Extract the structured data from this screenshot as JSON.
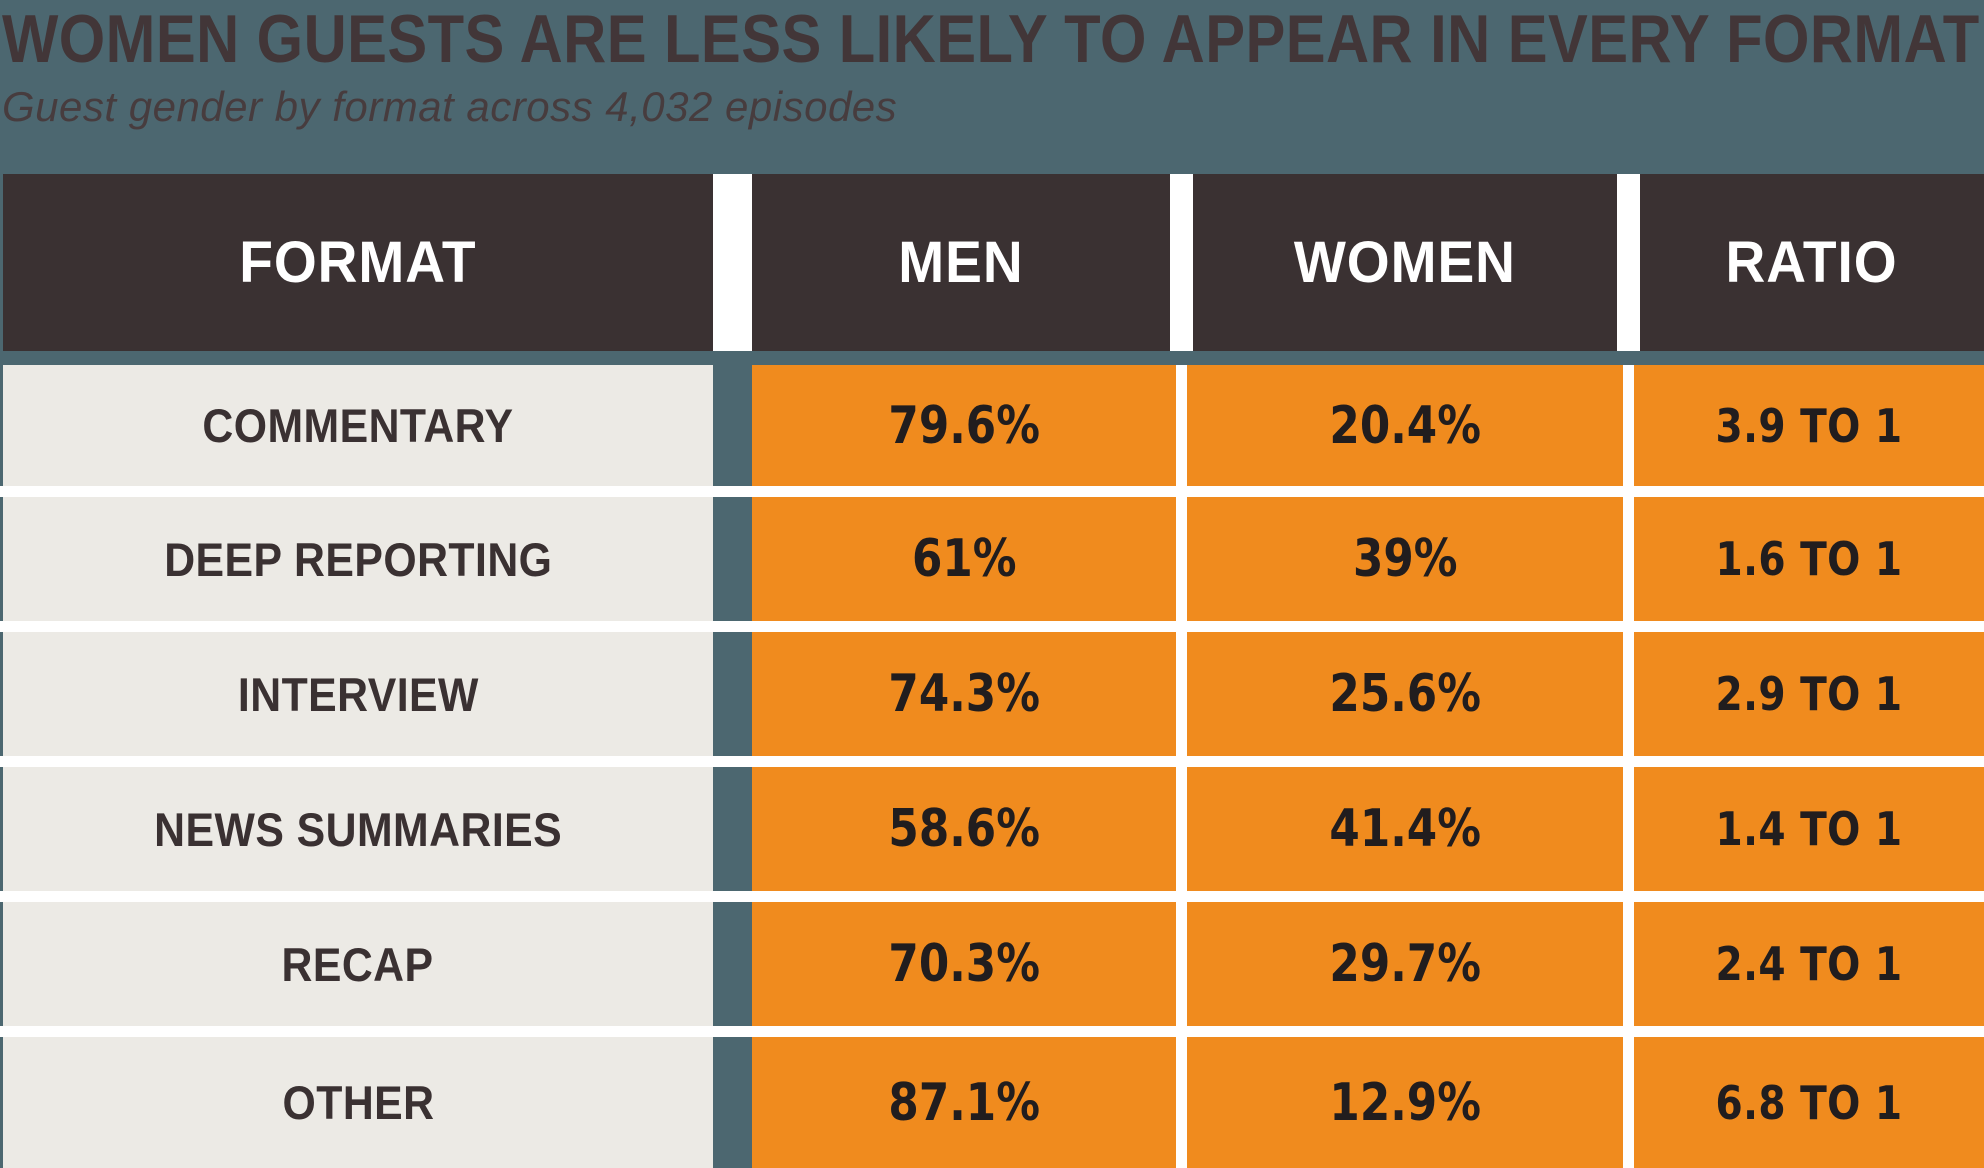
{
  "title": "WOMEN GUESTS ARE LESS LIKELY TO APPEAR IN EVERY FORMAT",
  "subtitle": "Guest gender by format across 4,032 episodes",
  "colors": {
    "background_teal": "#4c6770",
    "header_dark": "#3a3132",
    "cell_orange": "#f08b1e",
    "format_cell_gray": "#eceae5",
    "separator_white": "#ffffff",
    "title_dark": "#423638",
    "value_text": "#211d1e"
  },
  "chart_data": {
    "type": "table",
    "title": "WOMEN GUESTS ARE LESS LIKELY TO APPEAR IN EVERY FORMAT",
    "subtitle": "Guest gender by format across 4,032 episodes",
    "total_episodes": 4032,
    "columns": [
      "FORMAT",
      "MEN",
      "WOMEN",
      "RATIO"
    ],
    "rows": [
      {
        "format": "COMMENTARY",
        "men": "79.6%",
        "women": "20.4%",
        "ratio": "3.9 TO 1",
        "men_pct": 79.6,
        "women_pct": 20.4,
        "ratio_value": 3.9
      },
      {
        "format": "DEEP REPORTING",
        "men": "61%",
        "women": "39%",
        "ratio": "1.6 TO 1",
        "men_pct": 61,
        "women_pct": 39,
        "ratio_value": 1.6
      },
      {
        "format": "INTERVIEW",
        "men": "74.3%",
        "women": "25.6%",
        "ratio": "2.9 TO 1",
        "men_pct": 74.3,
        "women_pct": 25.6,
        "ratio_value": 2.9
      },
      {
        "format": "NEWS SUMMARIES",
        "men": "58.6%",
        "women": "41.4%",
        "ratio": "1.4 TO 1",
        "men_pct": 58.6,
        "women_pct": 41.4,
        "ratio_value": 1.4
      },
      {
        "format": "RECAP",
        "men": "70.3%",
        "women": "29.7%",
        "ratio": "2.4 TO 1",
        "men_pct": 70.3,
        "women_pct": 29.7,
        "ratio_value": 2.4
      },
      {
        "format": "OTHER",
        "men": "87.1%",
        "women": "12.9%",
        "ratio": "6.8 TO 1",
        "men_pct": 87.1,
        "women_pct": 12.9,
        "ratio_value": 6.8
      }
    ]
  }
}
